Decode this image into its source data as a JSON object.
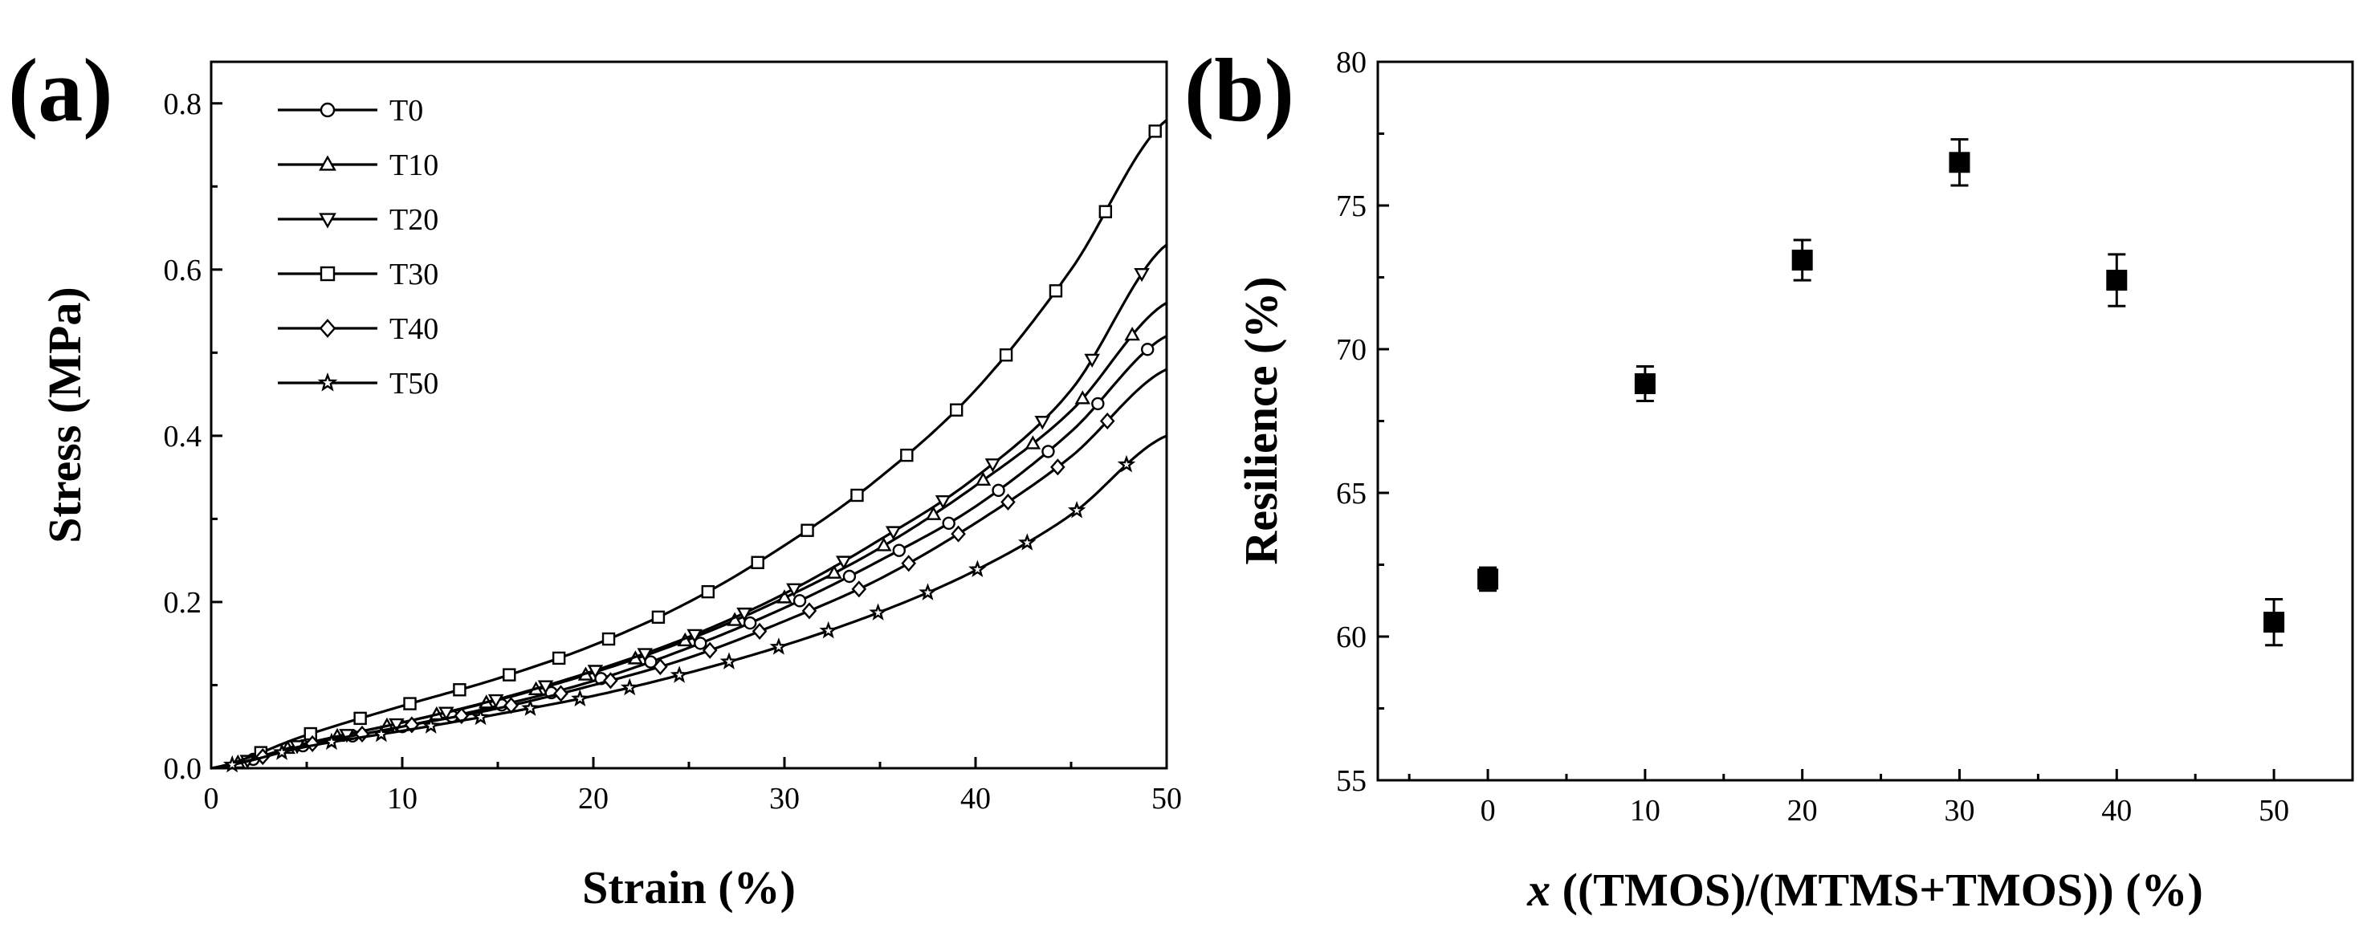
{
  "chart_data": [
    {
      "panel_label": "(a)",
      "type": "line",
      "xlabel": "Strain (%)",
      "ylabel": "Stress (MPa)",
      "xlim": [
        0,
        50
      ],
      "ylim": [
        0,
        0.85
      ],
      "xticks": [
        "0",
        "10",
        "20",
        "30",
        "40",
        "50"
      ],
      "yticks": [
        "0.0",
        "0.2",
        "0.4",
        "0.6",
        "0.8"
      ],
      "legend_position": "top-left",
      "series": [
        {
          "name": "T0",
          "marker": "circle",
          "x": [
            0,
            5,
            10,
            15,
            20,
            25,
            30,
            35,
            40,
            45,
            50
          ],
          "y": [
            0,
            0.028,
            0.05,
            0.075,
            0.105,
            0.145,
            0.193,
            0.25,
            0.315,
            0.405,
            0.52
          ]
        },
        {
          "name": "T10",
          "marker": "triangle-up",
          "x": [
            0,
            5,
            10,
            15,
            20,
            25,
            30,
            35,
            40,
            45,
            50
          ],
          "y": [
            0,
            0.03,
            0.055,
            0.082,
            0.115,
            0.155,
            0.205,
            0.265,
            0.34,
            0.43,
            0.56
          ]
        },
        {
          "name": "T20",
          "marker": "triangle-down",
          "x": [
            0,
            5,
            10,
            15,
            20,
            25,
            30,
            35,
            40,
            45,
            50
          ],
          "y": [
            0,
            0.03,
            0.055,
            0.083,
            0.117,
            0.158,
            0.21,
            0.275,
            0.35,
            0.455,
            0.63
          ]
        },
        {
          "name": "T30",
          "marker": "square",
          "x": [
            0,
            5,
            10,
            15,
            20,
            25,
            30,
            35,
            40,
            45,
            50
          ],
          "y": [
            0,
            0.04,
            0.075,
            0.108,
            0.148,
            0.2,
            0.268,
            0.35,
            0.455,
            0.6,
            0.78
          ]
        },
        {
          "name": "T40",
          "marker": "diamond",
          "x": [
            0,
            5,
            10,
            15,
            20,
            25,
            30,
            35,
            40,
            45,
            50
          ],
          "y": [
            0,
            0.028,
            0.05,
            0.072,
            0.1,
            0.133,
            0.177,
            0.228,
            0.295,
            0.375,
            0.48
          ]
        },
        {
          "name": "T50",
          "marker": "star",
          "x": [
            0,
            5,
            10,
            15,
            20,
            25,
            30,
            35,
            40,
            45,
            50
          ],
          "y": [
            0,
            0.026,
            0.045,
            0.065,
            0.087,
            0.115,
            0.148,
            0.188,
            0.238,
            0.305,
            0.4
          ]
        }
      ]
    },
    {
      "panel_label": "(b)",
      "type": "scatter",
      "xlabel_italic": "x",
      "xlabel_rest": " ((TMOS)/(MTMS+TMOS)) (%)",
      "ylabel": "Resilience (%)",
      "xlim": [
        -7,
        55
      ],
      "ylim": [
        55,
        80
      ],
      "xticks": [
        "0",
        "10",
        "20",
        "30",
        "40",
        "50"
      ],
      "yticks": [
        "55",
        "60",
        "65",
        "70",
        "75",
        "80"
      ],
      "marker": "filled-square",
      "points": [
        {
          "x": 0,
          "y": 62.0,
          "err": 0.4
        },
        {
          "x": 10,
          "y": 68.8,
          "err": 0.6
        },
        {
          "x": 20,
          "y": 73.1,
          "err": 0.7
        },
        {
          "x": 30,
          "y": 76.5,
          "err": 0.8
        },
        {
          "x": 40,
          "y": 72.4,
          "err": 0.9
        },
        {
          "x": 50,
          "y": 60.5,
          "err": 0.8
        }
      ]
    }
  ]
}
